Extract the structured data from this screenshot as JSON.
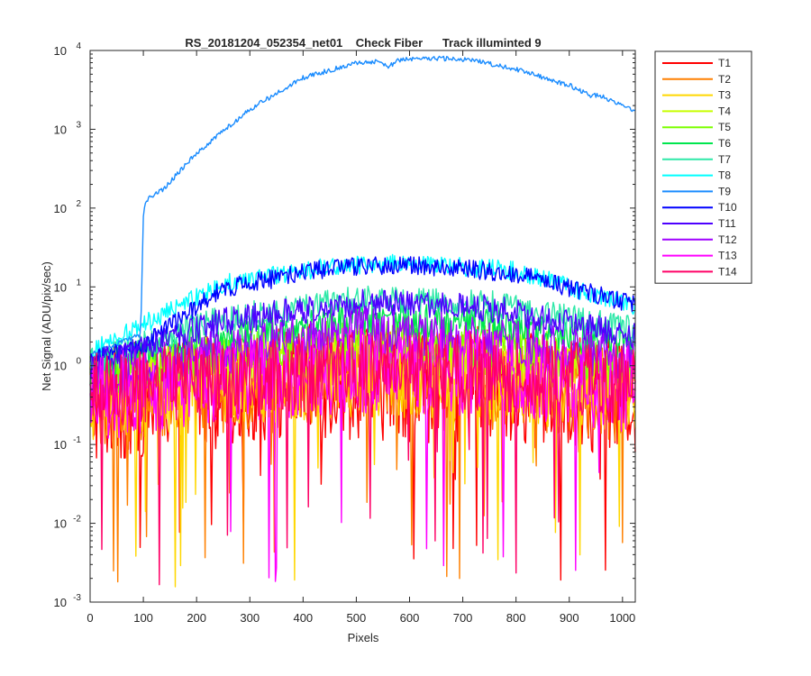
{
  "chart_data": {
    "type": "line",
    "title": "RS_20181204_052354_net01    Check Fiber      Track illuminted 9",
    "xlabel": "Pixels",
    "ylabel": "Net Signal (ADU/pix/sec)",
    "xlim": [
      0,
      1024
    ],
    "ylim": [
      0.001,
      10000
    ],
    "yscale": "log",
    "grid": false,
    "legend_location": "outside-right",
    "x_ticks": [
      "0",
      "100",
      "200",
      "300",
      "400",
      "500",
      "600",
      "700",
      "800",
      "900",
      "1000"
    ],
    "y_ticks": [
      {
        "base": "10",
        "exp": "-3"
      },
      {
        "base": "10",
        "exp": "-2"
      },
      {
        "base": "10",
        "exp": "-1"
      },
      {
        "base": "10",
        "exp": "0"
      },
      {
        "base": "10",
        "exp": "1"
      },
      {
        "base": "10",
        "exp": "2"
      },
      {
        "base": "10",
        "exp": "3"
      },
      {
        "base": "10",
        "exp": "4"
      }
    ],
    "series": [
      {
        "name": "T1",
        "color": "#ff0000",
        "profile": [
          [
            0,
            0.3
          ],
          [
            250,
            0.5
          ],
          [
            500,
            0.65
          ],
          [
            750,
            0.55
          ],
          [
            1024,
            0.38
          ]
        ],
        "noise": 0.75
      },
      {
        "name": "T2",
        "color": "#ff8000",
        "profile": [
          [
            0,
            0.35
          ],
          [
            250,
            0.55
          ],
          [
            500,
            0.75
          ],
          [
            750,
            0.62
          ],
          [
            1024,
            0.42
          ]
        ],
        "noise": 0.6
      },
      {
        "name": "T3",
        "color": "#ffd700",
        "profile": [
          [
            0,
            0.4
          ],
          [
            250,
            0.6
          ],
          [
            500,
            0.8
          ],
          [
            750,
            0.7
          ],
          [
            1024,
            0.45
          ]
        ],
        "noise": 0.55
      },
      {
        "name": "T4",
        "color": "#c8ff00",
        "profile": [
          [
            0,
            0.6
          ],
          [
            250,
            1.1
          ],
          [
            500,
            1.6
          ],
          [
            750,
            1.3
          ],
          [
            1024,
            0.8
          ]
        ],
        "noise": 0.3
      },
      {
        "name": "T5",
        "color": "#7cff00",
        "profile": [
          [
            0,
            0.7
          ],
          [
            250,
            1.4
          ],
          [
            500,
            2.1
          ],
          [
            750,
            1.8
          ],
          [
            1024,
            1.0
          ]
        ],
        "noise": 0.28
      },
      {
        "name": "T6",
        "color": "#00e64d",
        "profile": [
          [
            0,
            0.9
          ],
          [
            250,
            2.4
          ],
          [
            500,
            4.0
          ],
          [
            750,
            3.4
          ],
          [
            1024,
            1.8
          ]
        ],
        "noise": 0.22
      },
      {
        "name": "T7",
        "color": "#2ee8a8",
        "profile": [
          [
            0,
            1.1
          ],
          [
            250,
            4.0
          ],
          [
            500,
            7.0
          ],
          [
            750,
            6.0
          ],
          [
            1024,
            2.8
          ]
        ],
        "noise": 0.18
      },
      {
        "name": "T8",
        "color": "#00ffff",
        "profile": [
          [
            0,
            1.5
          ],
          [
            250,
            11
          ],
          [
            450,
            18
          ],
          [
            600,
            20
          ],
          [
            800,
            16
          ],
          [
            1024,
            5.5
          ]
        ],
        "noise": 0.12
      },
      {
        "name": "T9",
        "color": "#1a8cff",
        "profile": [
          [
            0,
            1.4
          ],
          [
            95,
            2.5
          ],
          [
            100,
            80
          ],
          [
            105,
            125
          ],
          [
            140,
            180
          ],
          [
            200,
            500
          ],
          [
            300,
            1800
          ],
          [
            400,
            4500
          ],
          [
            500,
            7000
          ],
          [
            540,
            7300
          ],
          [
            560,
            6200
          ],
          [
            580,
            7600
          ],
          [
            650,
            8000
          ],
          [
            720,
            7500
          ],
          [
            800,
            5800
          ],
          [
            900,
            3600
          ],
          [
            940,
            2700
          ],
          [
            960,
            2650
          ],
          [
            1024,
            1700
          ]
        ],
        "noise": 0.03
      },
      {
        "name": "T10",
        "color": "#0000ff",
        "profile": [
          [
            0,
            1.2
          ],
          [
            100,
            1.8
          ],
          [
            250,
            9.5
          ],
          [
            450,
            17.5
          ],
          [
            600,
            19
          ],
          [
            800,
            15
          ],
          [
            1024,
            5.8
          ]
        ],
        "noise": 0.12
      },
      {
        "name": "T11",
        "color": "#4d00ff",
        "profile": [
          [
            0,
            1.0
          ],
          [
            250,
            3.6
          ],
          [
            500,
            6.2
          ],
          [
            750,
            5.4
          ],
          [
            1024,
            2.3
          ]
        ],
        "noise": 0.18
      },
      {
        "name": "T12",
        "color": "#a000ff",
        "profile": [
          [
            0,
            0.6
          ],
          [
            250,
            1.5
          ],
          [
            500,
            2.8
          ],
          [
            750,
            2.2
          ],
          [
            1024,
            1.2
          ]
        ],
        "noise": 0.3
      },
      {
        "name": "T13",
        "color": "#ff00ff",
        "profile": [
          [
            0,
            0.4
          ],
          [
            250,
            0.6
          ],
          [
            500,
            0.9
          ],
          [
            750,
            0.8
          ],
          [
            1024,
            0.5
          ]
        ],
        "noise": 0.55
      },
      {
        "name": "T14",
        "color": "#ff0066",
        "profile": [
          [
            0,
            0.45
          ],
          [
            250,
            0.65
          ],
          [
            500,
            0.95
          ],
          [
            750,
            0.85
          ],
          [
            1024,
            0.55
          ]
        ],
        "noise": 0.5
      }
    ]
  }
}
